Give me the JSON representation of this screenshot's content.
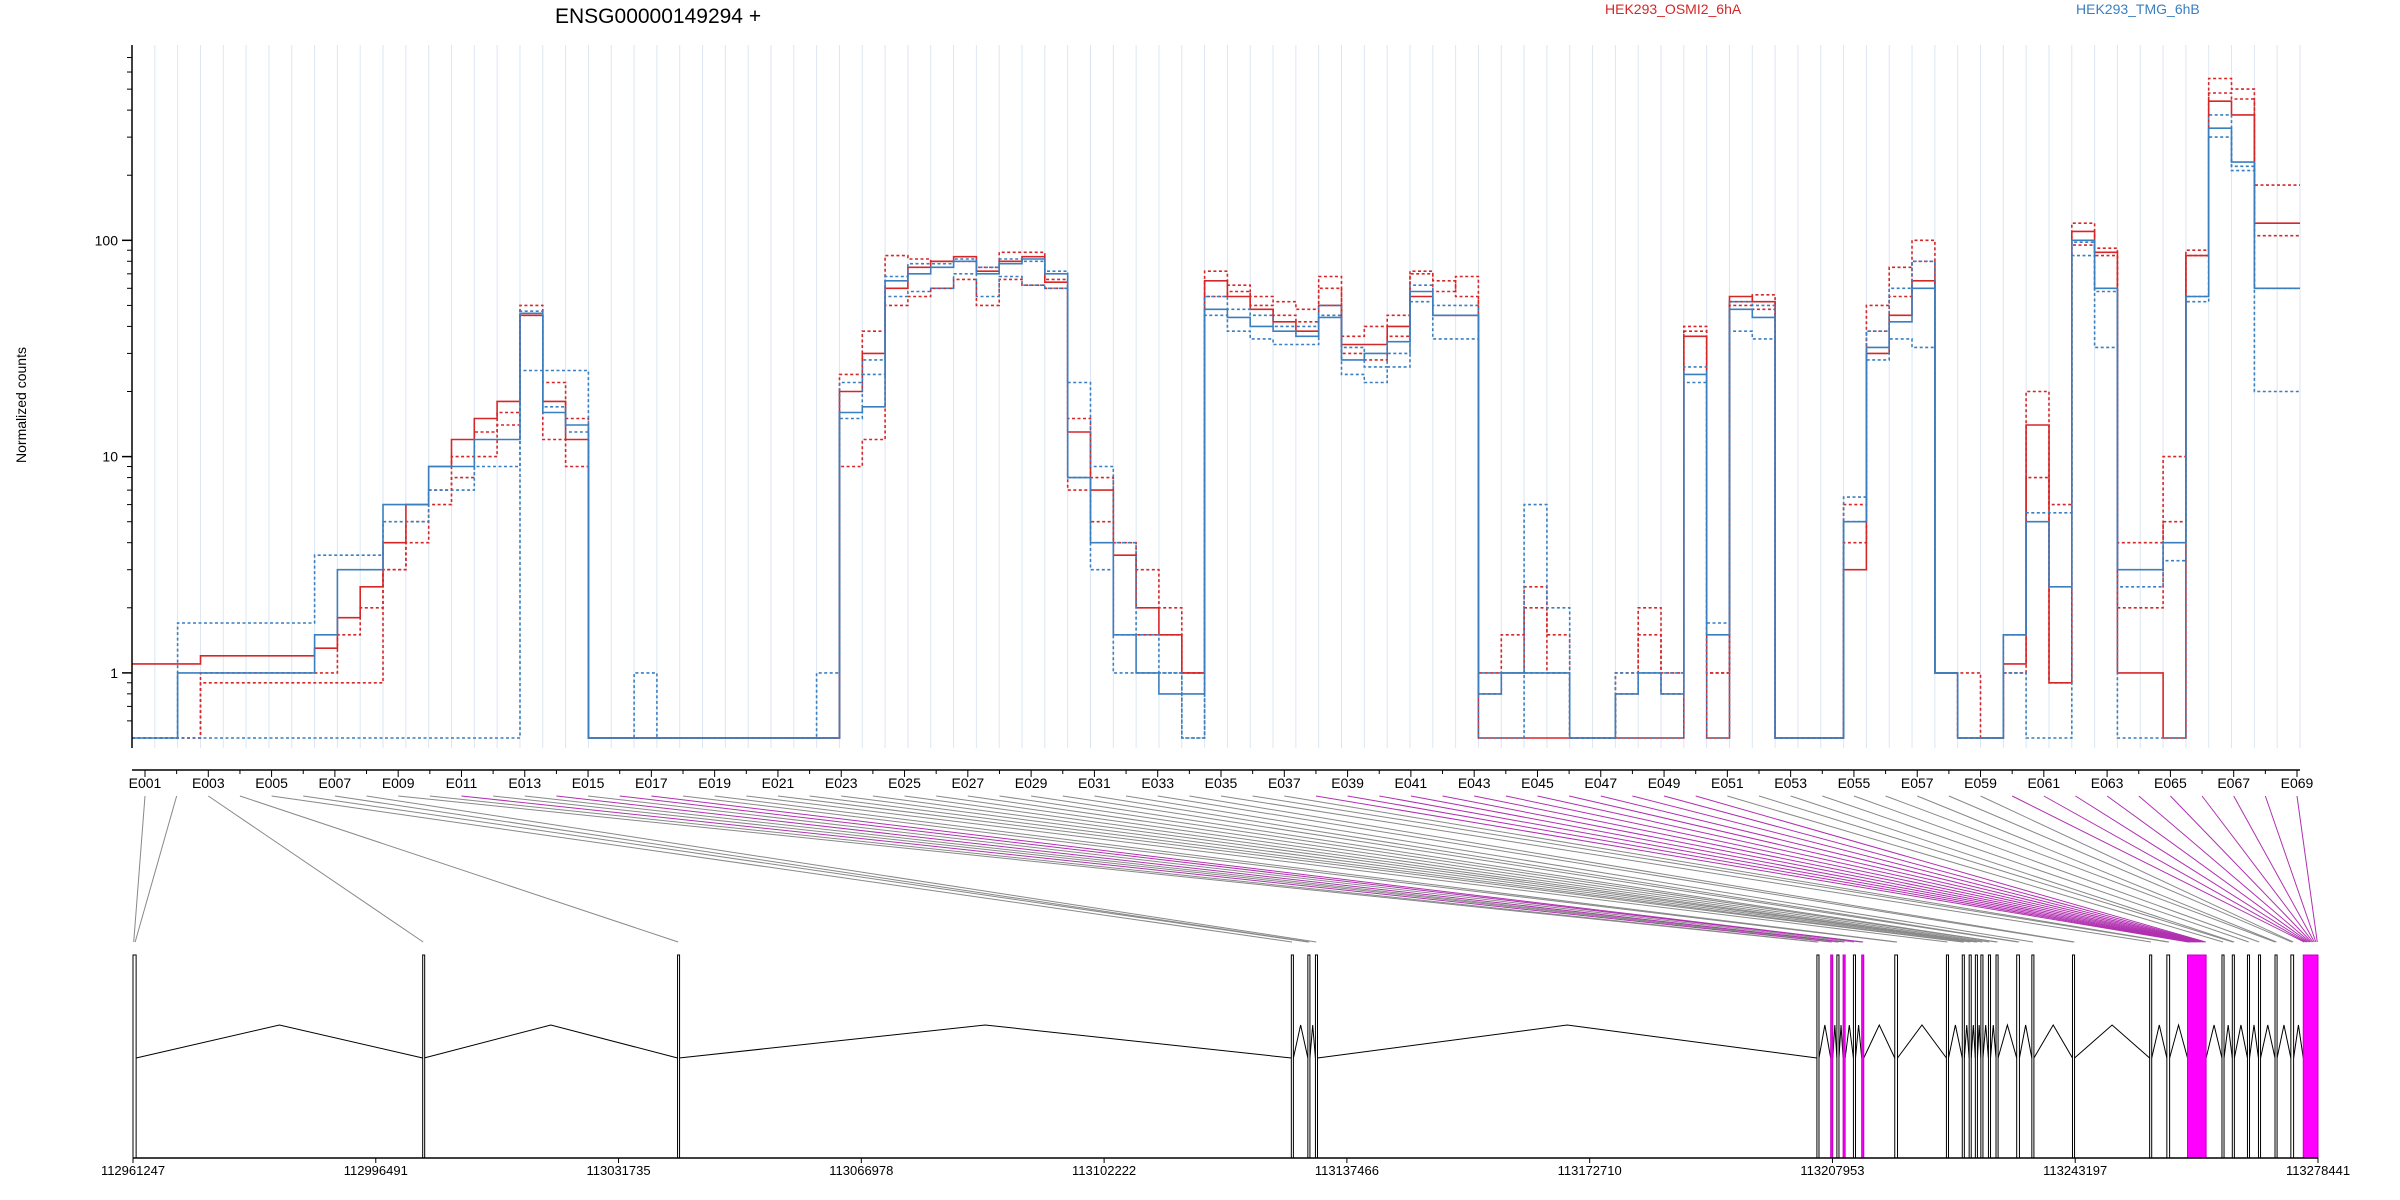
{
  "chart_data": {
    "type": "line",
    "title": "ENSG00000149294 +",
    "xlabel": "",
    "ylabel": "Normalized counts",
    "y_scale": "log",
    "y_ticks": [
      1,
      10,
      100
    ],
    "y_tick_labels": [
      "1",
      "10",
      "100"
    ],
    "ylim": [
      0.5,
      800
    ],
    "grid": true,
    "legend_placement": "top",
    "colors": {
      "osmi2": "#d62728",
      "tmg": "#3a7fc0",
      "novel_exon": "#ff00ff",
      "gene": "#000000"
    },
    "legend": [
      {
        "label": "HEK293_OSMI2_6hA",
        "color": "#d62728"
      },
      {
        "label": "HEK293_TMG_6hB",
        "color": "#3a7fc0"
      }
    ],
    "exon_labels": [
      "E001",
      "E003",
      "E005",
      "E007",
      "E009",
      "E011",
      "E013",
      "E015",
      "E017",
      "E019",
      "E021",
      "E023",
      "E025",
      "E027",
      "E029",
      "E031",
      "E033",
      "E035",
      "E037",
      "E039",
      "E041",
      "E043",
      "E045",
      "E047",
      "E049",
      "E051",
      "E053",
      "E055",
      "E057",
      "E059",
      "E061",
      "E063",
      "E065",
      "E067",
      "E069"
    ],
    "series": [
      {
        "group": "OSMI2",
        "dashed": false,
        "values": [
          1.1,
          1.1,
          1.1,
          1.2,
          1.2,
          1.2,
          1.2,
          1.2,
          1.3,
          1.8,
          2.5,
          4,
          6,
          9,
          12,
          15,
          18,
          45,
          18,
          12,
          0.5,
          0.5,
          0.5,
          0.5,
          0.5,
          0.5,
          0.5,
          0.5,
          0.5,
          0.5,
          0.5,
          20,
          30,
          60,
          75,
          80,
          84,
          72,
          80,
          84,
          64,
          13,
          7,
          3.5,
          2,
          1.5,
          1,
          65,
          55,
          48,
          42,
          38,
          50,
          33,
          33,
          40,
          55,
          45,
          45,
          0.5,
          0.5,
          0.5,
          0.5,
          0.5,
          0.5,
          0.5,
          0.5,
          0.5,
          36,
          0.5,
          55,
          52,
          0.5,
          0.5,
          0.5,
          3,
          30,
          45,
          65,
          1,
          0.5,
          0.5,
          1.1,
          14,
          0.9,
          110,
          88,
          1,
          1,
          0.5,
          85,
          440,
          380,
          120,
          120
        ]
      },
      {
        "group": "OSMI2",
        "dashed": true,
        "values": [
          0.5,
          0.5,
          0.5,
          1,
          1,
          1,
          1,
          1,
          1,
          1.5,
          2,
          3,
          5,
          7,
          10,
          13,
          16,
          50,
          22,
          15,
          0.5,
          0.5,
          0.5,
          0.5,
          0.5,
          0.5,
          0.5,
          0.5,
          0.5,
          0.5,
          0.5,
          24,
          38,
          85,
          82,
          80,
          80,
          75,
          88,
          88,
          66,
          15,
          8,
          4,
          3,
          2,
          1,
          72,
          62,
          55,
          52,
          48,
          68,
          36,
          40,
          45,
          70,
          65,
          55,
          1,
          1,
          2,
          1,
          0.5,
          0.5,
          1,
          2,
          1,
          40,
          1,
          52,
          56,
          0.5,
          0.5,
          0.5,
          6,
          50,
          75,
          100,
          1,
          1,
          0.5,
          1.5,
          20,
          6,
          120,
          92,
          4,
          4,
          10,
          90,
          560,
          500,
          180,
          180
        ]
      },
      {
        "group": "OSMI2",
        "dashed": true,
        "values": [
          0.5,
          0.5,
          0.5,
          0.9,
          0.9,
          0.9,
          0.9,
          0.9,
          0.9,
          0.9,
          0.9,
          3,
          4,
          6,
          8,
          10,
          14,
          45,
          12,
          9,
          0.5,
          0.5,
          0.5,
          0.5,
          0.5,
          0.5,
          0.5,
          0.5,
          0.5,
          0.5,
          0.5,
          9,
          12,
          50,
          55,
          60,
          66,
          50,
          66,
          62,
          60,
          7,
          5,
          1.5,
          1.5,
          1.5,
          1,
          55,
          58,
          50,
          45,
          42,
          60,
          30,
          28,
          36,
          72,
          58,
          68,
          0.8,
          1.5,
          2.5,
          1.5,
          0.5,
          0.5,
          0.8,
          1.5,
          0.8,
          38,
          1,
          50,
          48,
          0.5,
          0.5,
          0.5,
          4,
          38,
          55,
          80,
          1,
          0.5,
          0.5,
          1,
          8,
          0.9,
          95,
          85,
          2,
          2,
          5,
          85,
          480,
          450,
          105,
          105
        ]
      },
      {
        "group": "TMG",
        "dashed": false,
        "values": [
          0.5,
          0.5,
          1,
          1,
          1,
          1,
          1,
          1,
          1.5,
          3,
          3,
          6,
          6,
          9,
          9,
          12,
          12,
          46,
          16,
          14,
          0.5,
          0.5,
          0.5,
          0.5,
          0.5,
          0.5,
          0.5,
          0.5,
          0.5,
          0.5,
          0.5,
          16,
          17,
          65,
          70,
          75,
          80,
          70,
          78,
          82,
          70,
          8,
          4,
          1.5,
          1,
          0.8,
          0.8,
          48,
          44,
          40,
          38,
          36,
          44,
          28,
          30,
          34,
          58,
          45,
          45,
          0.8,
          1,
          1,
          1,
          0.5,
          0.5,
          0.8,
          1,
          0.8,
          24,
          1.5,
          48,
          44,
          0.5,
          0.5,
          0.5,
          5,
          32,
          42,
          60,
          1,
          0.5,
          0.5,
          1.5,
          5,
          2.5,
          100,
          60,
          3,
          3,
          4,
          55,
          330,
          230,
          60,
          60
        ]
      },
      {
        "group": "TMG",
        "dashed": true,
        "values": [
          0.5,
          0.5,
          0.5,
          0.5,
          0.5,
          0.5,
          0.5,
          0.5,
          0.5,
          0.5,
          0.5,
          0.5,
          0.5,
          0.5,
          0.5,
          0.5,
          0.5,
          25,
          25,
          25,
          0.5,
          0.5,
          1,
          0.5,
          0.5,
          0.5,
          0.5,
          0.5,
          0.5,
          0.5,
          1,
          22,
          28,
          68,
          78,
          78,
          82,
          75,
          82,
          80,
          72,
          22,
          9,
          4,
          1.5,
          1,
          0.5,
          55,
          48,
          45,
          40,
          40,
          50,
          32,
          26,
          30,
          62,
          50,
          50,
          1,
          1,
          6,
          2,
          0.5,
          0.5,
          1,
          1,
          1,
          26,
          1.7,
          52,
          50,
          0.5,
          0.5,
          0.5,
          6.5,
          38,
          60,
          80,
          1,
          0.5,
          0.5,
          1.5,
          5.5,
          5.5,
          98,
          58,
          2.5,
          2.5,
          3.3,
          55,
          380,
          220,
          60,
          60
        ]
      },
      {
        "group": "TMG",
        "dashed": true,
        "values": [
          0.5,
          0.5,
          1.7,
          1.7,
          1.7,
          1.7,
          1.7,
          1.7,
          3.5,
          3.5,
          3.5,
          5,
          5,
          7,
          7,
          9,
          9,
          47,
          17,
          13,
          0.5,
          0.5,
          0.5,
          0.5,
          0.5,
          0.5,
          0.5,
          0.5,
          0.5,
          0.5,
          0.5,
          15,
          24,
          55,
          58,
          60,
          70,
          55,
          68,
          62,
          60,
          8,
          3,
          1,
          1,
          1,
          0.5,
          45,
          38,
          35,
          33,
          33,
          45,
          24,
          22,
          26,
          52,
          35,
          35,
          0.5,
          0.5,
          1,
          1,
          0.5,
          0.5,
          0.5,
          0.5,
          0.5,
          22,
          0.5,
          38,
          35,
          0.5,
          0.5,
          0.5,
          5,
          28,
          35,
          32,
          1,
          0.5,
          0.5,
          1,
          0.5,
          0.5,
          85,
          32,
          0.5,
          0.5,
          0.5,
          52,
          300,
          210,
          20,
          20
        ]
      }
    ],
    "genomic_axis": {
      "ticks": [
        "112961247",
        "112996491",
        "113031735",
        "113066978",
        "113102222",
        "113137466",
        "113172710",
        "113207953",
        "113243197",
        "113278441"
      ],
      "range": [
        112961247,
        113278441
      ]
    },
    "gene_model": {
      "exons": [
        {
          "start": 112961247,
          "end": 112961700,
          "novel": false
        },
        {
          "start": 113003300,
          "end": 113003500,
          "novel": false
        },
        {
          "start": 113040300,
          "end": 113040500,
          "novel": false
        },
        {
          "start": 113129400,
          "end": 113129700,
          "novel": false
        },
        {
          "start": 113131800,
          "end": 113132100,
          "novel": false
        },
        {
          "start": 113132900,
          "end": 113133200,
          "novel": false
        },
        {
          "start": 113205700,
          "end": 113206000,
          "novel": false
        },
        {
          "start": 113207700,
          "end": 113208000,
          "novel": true
        },
        {
          "start": 113208600,
          "end": 113208900,
          "novel": false
        },
        {
          "start": 113209500,
          "end": 113209800,
          "novel": true
        },
        {
          "start": 113211000,
          "end": 113211300,
          "novel": false
        },
        {
          "start": 113212200,
          "end": 113212500,
          "novel": true
        },
        {
          "start": 113217000,
          "end": 113217400,
          "novel": false
        },
        {
          "start": 113224500,
          "end": 113224800,
          "novel": false
        },
        {
          "start": 113226800,
          "end": 113227100,
          "novel": false
        },
        {
          "start": 113227800,
          "end": 113228100,
          "novel": false
        },
        {
          "start": 113228700,
          "end": 113229000,
          "novel": false
        },
        {
          "start": 113229500,
          "end": 113229800,
          "novel": false
        },
        {
          "start": 113230600,
          "end": 113230900,
          "novel": false
        },
        {
          "start": 113231700,
          "end": 113232000,
          "novel": false
        },
        {
          "start": 113234700,
          "end": 113235100,
          "novel": false
        },
        {
          "start": 113236900,
          "end": 113237200,
          "novel": false
        },
        {
          "start": 113242800,
          "end": 113243100,
          "novel": false
        },
        {
          "start": 113254000,
          "end": 113254300,
          "novel": false
        },
        {
          "start": 113256500,
          "end": 113256900,
          "novel": false
        },
        {
          "start": 113259500,
          "end": 113262200,
          "novel": true
        },
        {
          "start": 113264500,
          "end": 113264800,
          "novel": false
        },
        {
          "start": 113266000,
          "end": 113266300,
          "novel": false
        },
        {
          "start": 113268200,
          "end": 113268500,
          "novel": false
        },
        {
          "start": 113269800,
          "end": 113270100,
          "novel": false
        },
        {
          "start": 113272200,
          "end": 113272500,
          "novel": false
        },
        {
          "start": 113274500,
          "end": 113274900,
          "novel": false
        },
        {
          "start": 113276300,
          "end": 113278441,
          "novel": true
        }
      ]
    }
  }
}
